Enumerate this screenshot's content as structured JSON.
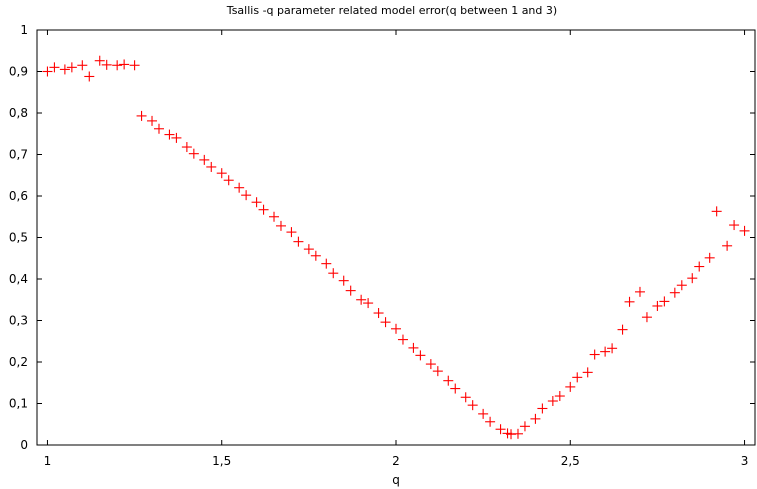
{
  "chart_data": {
    "type": "scatter",
    "title": "Tsallis -q parameter related model error(q between 1 and 3)",
    "xlabel": "q",
    "ylabel": "",
    "xlim": [
      0.97,
      3.03
    ],
    "ylim": [
      0,
      1
    ],
    "x_ticks": [
      {
        "value": 1,
        "label": "1"
      },
      {
        "value": 1.5,
        "label": "1,5"
      },
      {
        "value": 2,
        "label": "2"
      },
      {
        "value": 2.5,
        "label": "2,5"
      },
      {
        "value": 3,
        "label": "3"
      }
    ],
    "y_ticks": [
      {
        "value": 0,
        "label": "0"
      },
      {
        "value": 0.1,
        "label": "0,1"
      },
      {
        "value": 0.2,
        "label": "0,2"
      },
      {
        "value": 0.3,
        "label": "0,3"
      },
      {
        "value": 0.4,
        "label": "0,4"
      },
      {
        "value": 0.5,
        "label": "0,5"
      },
      {
        "value": 0.6,
        "label": "0,6"
      },
      {
        "value": 0.7,
        "label": "0,7"
      },
      {
        "value": 0.8,
        "label": "0,8"
      },
      {
        "value": 0.9,
        "label": "0,9"
      },
      {
        "value": 1,
        "label": "1"
      }
    ],
    "grid": false,
    "marker": "+",
    "marker_color": "#ff0000",
    "series": [
      {
        "x": [
          1.0,
          1.02,
          1.05,
          1.07,
          1.1,
          1.12,
          1.15,
          1.17,
          1.2,
          1.22,
          1.25,
          1.27,
          1.3,
          1.32,
          1.35,
          1.37,
          1.4,
          1.42,
          1.45,
          1.47,
          1.5,
          1.52,
          1.55,
          1.57,
          1.6,
          1.62,
          1.65,
          1.67,
          1.7,
          1.72,
          1.75,
          1.77,
          1.8,
          1.82,
          1.85,
          1.87,
          1.9,
          1.92,
          1.95,
          1.97,
          2.0,
          2.02,
          2.05,
          2.07,
          2.1,
          2.12,
          2.15,
          2.17,
          2.2,
          2.22,
          2.25,
          2.27,
          2.3,
          2.32,
          2.33,
          2.35,
          2.37,
          2.4,
          2.42,
          2.45,
          2.47,
          2.5,
          2.52,
          2.55,
          2.57,
          2.6,
          2.62,
          2.65,
          2.67,
          2.7,
          2.72,
          2.75,
          2.77,
          2.8,
          2.82,
          2.85,
          2.87,
          2.9,
          2.92,
          2.95,
          2.97,
          3.0
        ],
        "y": [
          0.9,
          0.91,
          0.905,
          0.91,
          0.915,
          0.888,
          0.926,
          0.916,
          0.915,
          0.917,
          0.915,
          0.793,
          0.781,
          0.762,
          0.748,
          0.74,
          0.718,
          0.702,
          0.687,
          0.67,
          0.655,
          0.638,
          0.62,
          0.602,
          0.585,
          0.567,
          0.55,
          0.528,
          0.513,
          0.49,
          0.472,
          0.456,
          0.437,
          0.414,
          0.396,
          0.372,
          0.35,
          0.342,
          0.318,
          0.296,
          0.28,
          0.254,
          0.234,
          0.216,
          0.195,
          0.178,
          0.155,
          0.136,
          0.115,
          0.096,
          0.075,
          0.056,
          0.038,
          0.028,
          0.026,
          0.027,
          0.045,
          0.063,
          0.088,
          0.106,
          0.118,
          0.14,
          0.163,
          0.175,
          0.218,
          0.225,
          0.233,
          0.278,
          0.345,
          0.369,
          0.308,
          0.335,
          0.346,
          0.367,
          0.385,
          0.402,
          0.43,
          0.451,
          0.563,
          0.48,
          0.53,
          0.516
        ]
      }
    ]
  }
}
